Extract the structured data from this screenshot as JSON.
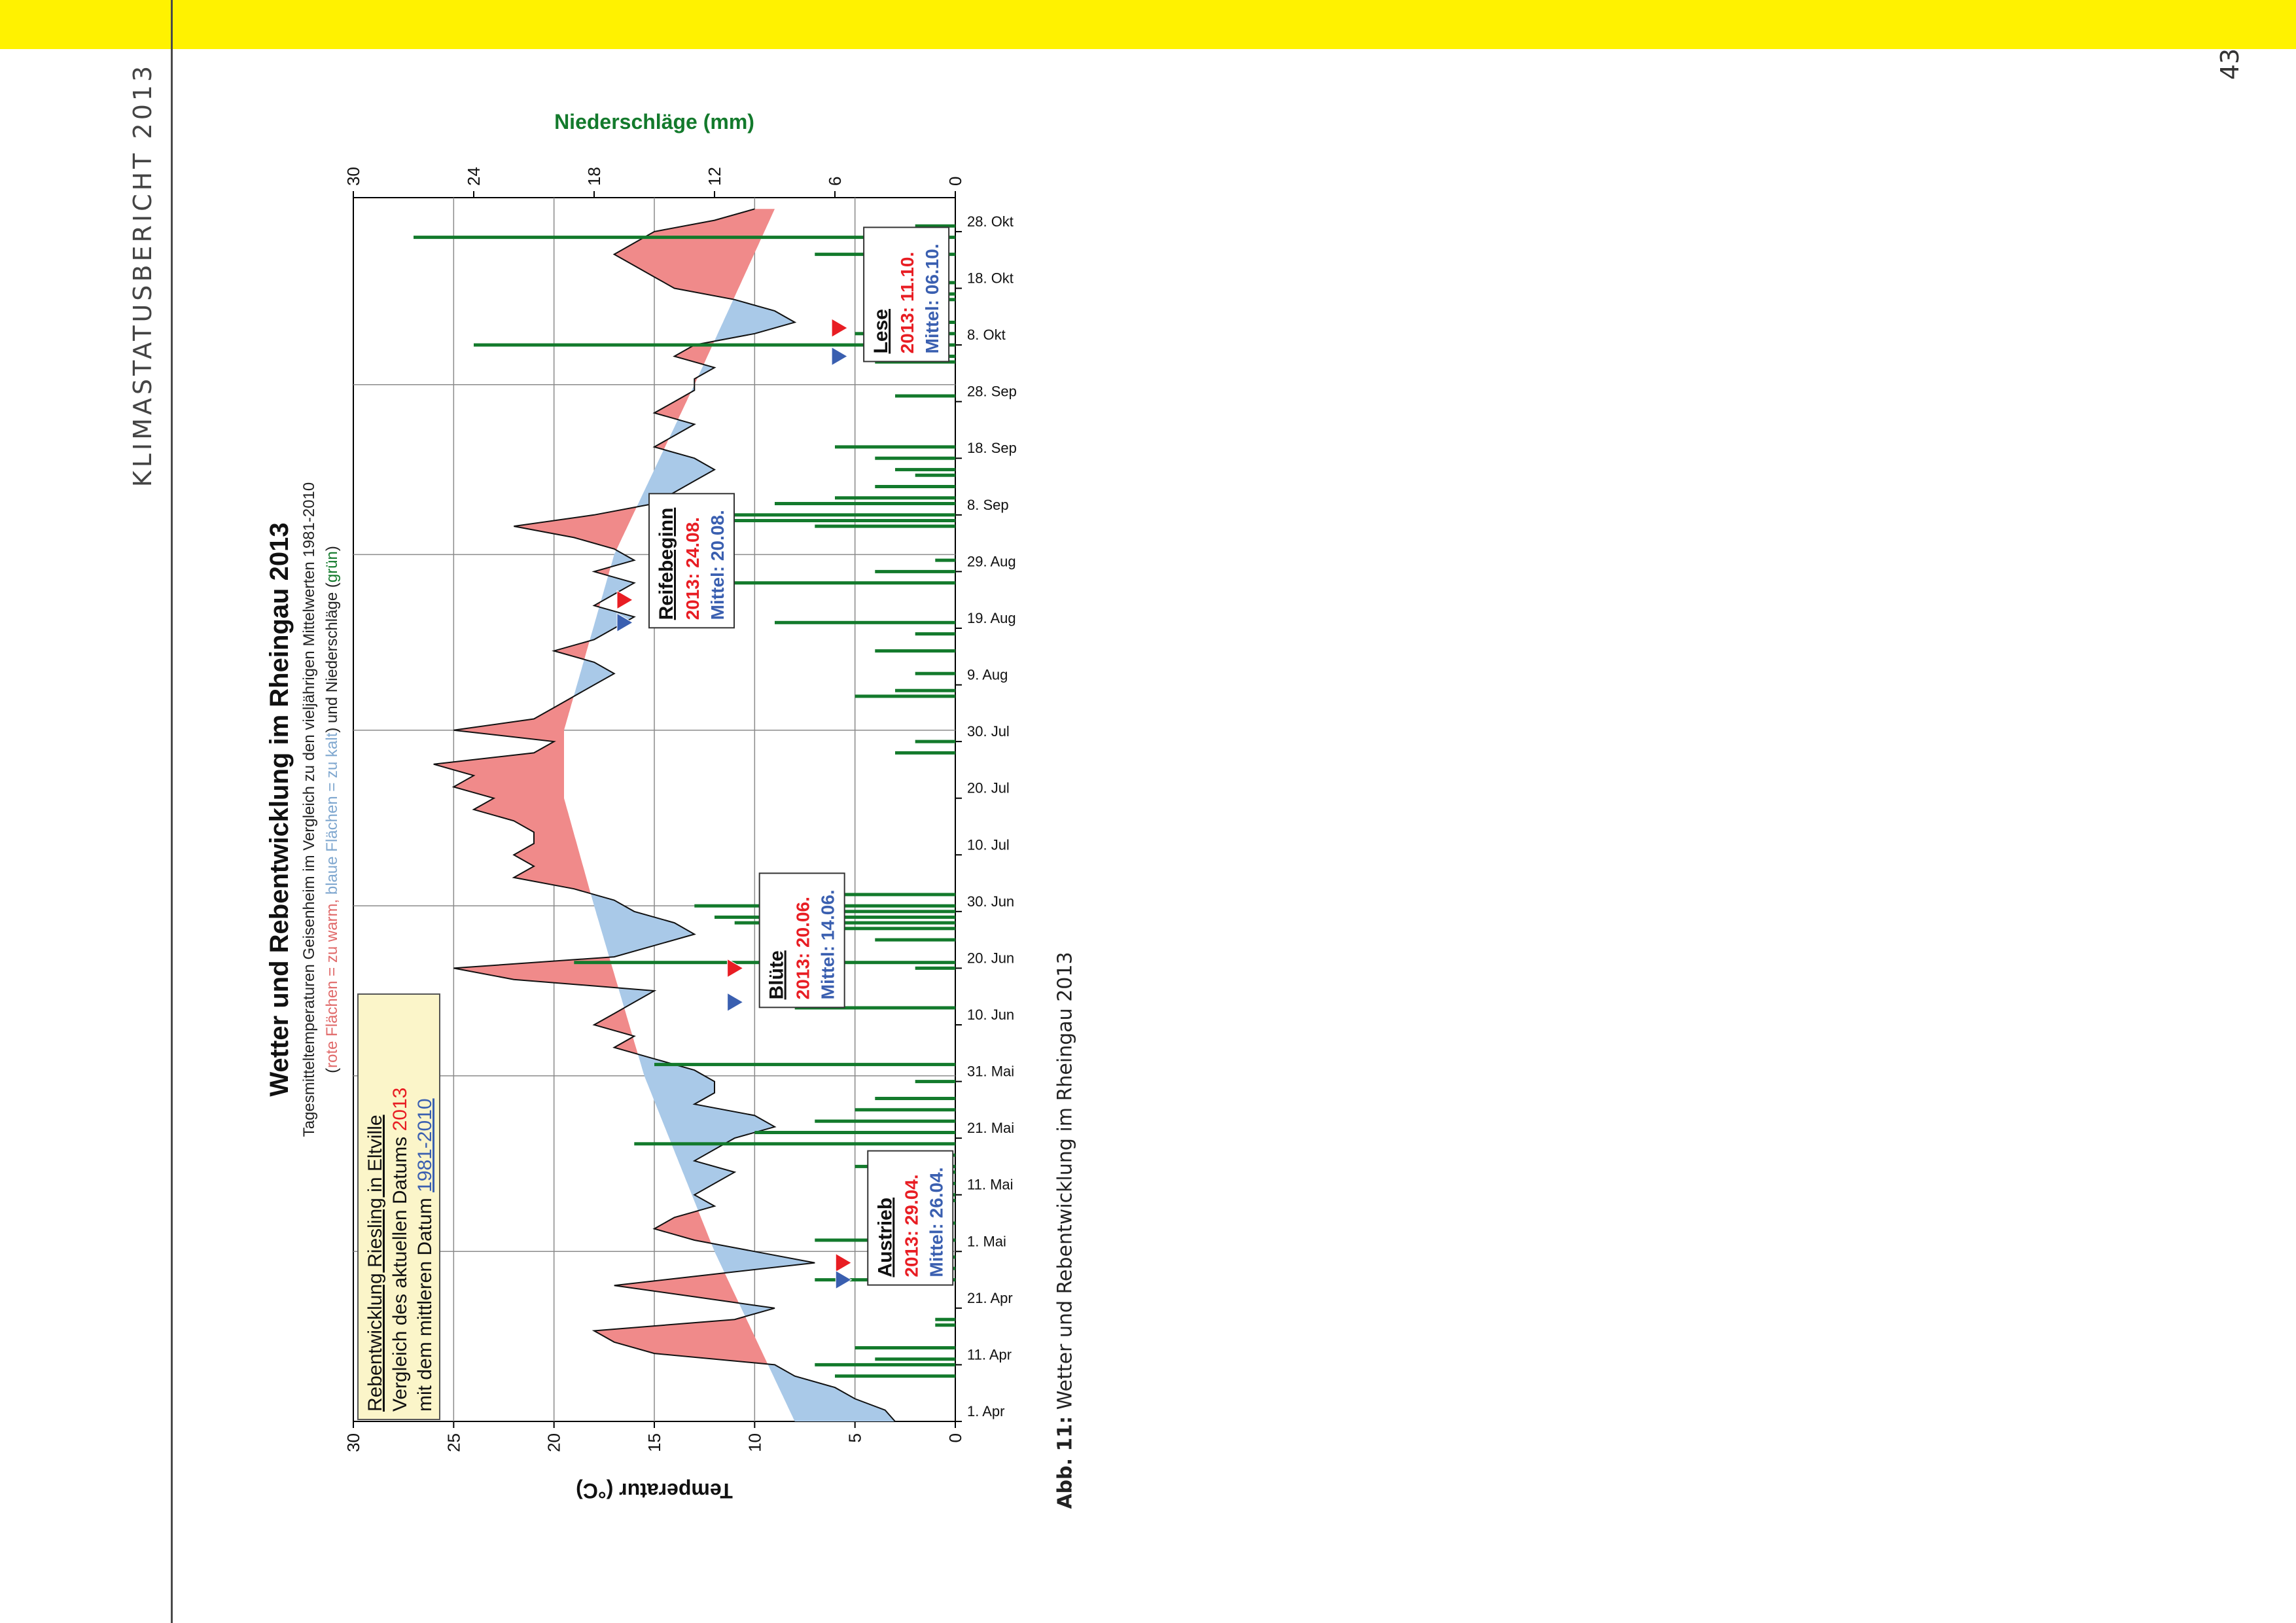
{
  "page": {
    "running_head": "KLIMASTATUSBERICHT 2013",
    "page_number": "43",
    "caption_label": "Abb. 11:",
    "caption_text": "Wetter und Rebentwicklung im Rheingau 2013",
    "colors": {
      "topbar": "#fff200",
      "warm": "#f08a8a",
      "cold": "#a9c9e8",
      "precip": "#137a2c",
      "mean2013": "#e81d23",
      "meanLong": "#3a5fb0"
    }
  },
  "chart_data": {
    "type": "area",
    "title": "Wetter und Rebentwicklung im Rheingau 2013",
    "subtitle": "Tagesmitteltemperaturen Geisenheim im Vergleich zu den vieljährigen Mittelwerten 1981-2010",
    "legend_note_prefix": "(",
    "legend_note_red": "rote Flächen = zu warm,",
    "legend_note_blue": "blaue Flächen = zu kalt",
    "legend_note_mid": ") und Niederschläge (",
    "legend_note_green": "grün",
    "legend_note_suffix": ")",
    "ylabel": "Temperatur (°C)",
    "ylabel2": "Niederschläge (mm)",
    "ylim": [
      0,
      30
    ],
    "yticks": [
      "30",
      "25",
      "20",
      "15",
      "10",
      "5",
      "0"
    ],
    "ylim2": [
      0,
      30
    ],
    "y2ticks": [
      "30",
      "24",
      "18",
      "12",
      "6",
      "0"
    ],
    "x_ticks": [
      "1. Apr",
      "11. Apr",
      "21. Apr",
      "1. Mai",
      "11. Mai",
      "21. Mai",
      "31. Mai",
      "10. Jun",
      "20. Jun",
      "30. Jun",
      "10. Jul",
      "20. Jul",
      "30. Jul",
      "9. Aug",
      "19. Aug",
      "29. Aug",
      "8. Sep",
      "18. Sep",
      "28. Sep",
      "8. Okt",
      "18. Okt",
      "28. Okt"
    ],
    "x_range": [
      "2013-04-01",
      "2013-11-03"
    ],
    "grid": true,
    "legend_box": {
      "line1": "Rebentwicklung Riesling in Eltville",
      "line2_prefix": "Vergleich des aktuellen Datums ",
      "line2_year": "2013",
      "line3_prefix": "mit dem mittleren Datum ",
      "line3_period": "1981-2010"
    },
    "phenology": [
      {
        "name": "Austrieb",
        "date_2013_label": "2013:  29.04.",
        "date_mean_label": "Mittel: 26.04.",
        "date_2013": "2013-04-29",
        "date_mean": "2013-04-26",
        "marker_temp": 5.6
      },
      {
        "name": "Blüte",
        "date_2013_label": "2013:  20.06.",
        "date_mean_label": "Mittel: 14.06.",
        "date_2013": "2013-06-20",
        "date_mean": "2013-06-14",
        "marker_temp": 11.0
      },
      {
        "name": "Reifebeginn",
        "date_2013_label": "2013:  24.08.",
        "date_mean_label": "Mittel: 20.08.",
        "date_2013": "2013-08-24",
        "date_mean": "2013-08-20",
        "marker_temp": 16.5
      },
      {
        "name": "Lese",
        "date_2013_label": "2013:  11.10.",
        "date_mean_label": "Mittel: 06.10.",
        "date_2013": "2013-10-11",
        "date_mean": "2013-10-06",
        "marker_temp": 5.8
      }
    ],
    "series": [
      {
        "name": "Tagesmitteltemperatur 2013",
        "points": [
          [
            "2013-04-01",
            3
          ],
          [
            "2013-04-03",
            3.5
          ],
          [
            "2013-04-05",
            5
          ],
          [
            "2013-04-07",
            6
          ],
          [
            "2013-04-09",
            8
          ],
          [
            "2013-04-11",
            9
          ],
          [
            "2013-04-13",
            15
          ],
          [
            "2013-04-15",
            17
          ],
          [
            "2013-04-17",
            18
          ],
          [
            "2013-04-19",
            11
          ],
          [
            "2013-04-21",
            9
          ],
          [
            "2013-04-23",
            13
          ],
          [
            "2013-04-25",
            17
          ],
          [
            "2013-04-27",
            12
          ],
          [
            "2013-04-29",
            7
          ],
          [
            "2013-05-01",
            10
          ],
          [
            "2013-05-03",
            13
          ],
          [
            "2013-05-05",
            15
          ],
          [
            "2013-05-07",
            14
          ],
          [
            "2013-05-09",
            12
          ],
          [
            "2013-05-11",
            13
          ],
          [
            "2013-05-13",
            12
          ],
          [
            "2013-05-15",
            11
          ],
          [
            "2013-05-17",
            13
          ],
          [
            "2013-05-19",
            12
          ],
          [
            "2013-05-21",
            11
          ],
          [
            "2013-05-23",
            9
          ],
          [
            "2013-05-25",
            10
          ],
          [
            "2013-05-27",
            13
          ],
          [
            "2013-05-29",
            12
          ],
          [
            "2013-05-31",
            12
          ],
          [
            "2013-06-02",
            13
          ],
          [
            "2013-06-04",
            15
          ],
          [
            "2013-06-06",
            17
          ],
          [
            "2013-06-08",
            16
          ],
          [
            "2013-06-10",
            18
          ],
          [
            "2013-06-12",
            17
          ],
          [
            "2013-06-14",
            16
          ],
          [
            "2013-06-16",
            15
          ],
          [
            "2013-06-18",
            22
          ],
          [
            "2013-06-20",
            25
          ],
          [
            "2013-06-22",
            17
          ],
          [
            "2013-06-24",
            15
          ],
          [
            "2013-06-26",
            13
          ],
          [
            "2013-06-28",
            14
          ],
          [
            "2013-06-30",
            16
          ],
          [
            "2013-07-02",
            17
          ],
          [
            "2013-07-04",
            19
          ],
          [
            "2013-07-06",
            22
          ],
          [
            "2013-07-08",
            21
          ],
          [
            "2013-07-10",
            22
          ],
          [
            "2013-07-12",
            21
          ],
          [
            "2013-07-14",
            21
          ],
          [
            "2013-07-16",
            22
          ],
          [
            "2013-07-18",
            24
          ],
          [
            "2013-07-20",
            23
          ],
          [
            "2013-07-22",
            25
          ],
          [
            "2013-07-24",
            24
          ],
          [
            "2013-07-26",
            26
          ],
          [
            "2013-07-28",
            21
          ],
          [
            "2013-07-30",
            20
          ],
          [
            "2013-08-01",
            25
          ],
          [
            "2013-08-03",
            21
          ],
          [
            "2013-08-05",
            20
          ],
          [
            "2013-08-07",
            19
          ],
          [
            "2013-08-09",
            18
          ],
          [
            "2013-08-11",
            17
          ],
          [
            "2013-08-13",
            18
          ],
          [
            "2013-08-15",
            20
          ],
          [
            "2013-08-17",
            18
          ],
          [
            "2013-08-19",
            17
          ],
          [
            "2013-08-21",
            16
          ],
          [
            "2013-08-23",
            18
          ],
          [
            "2013-08-25",
            17
          ],
          [
            "2013-08-27",
            16
          ],
          [
            "2013-08-29",
            18
          ],
          [
            "2013-08-31",
            16
          ],
          [
            "2013-09-02",
            17
          ],
          [
            "2013-09-04",
            19
          ],
          [
            "2013-09-06",
            22
          ],
          [
            "2013-09-08",
            18
          ],
          [
            "2013-09-10",
            15
          ],
          [
            "2013-09-12",
            14
          ],
          [
            "2013-09-14",
            13
          ],
          [
            "2013-09-16",
            12
          ],
          [
            "2013-09-18",
            13
          ],
          [
            "2013-09-20",
            15
          ],
          [
            "2013-09-22",
            14
          ],
          [
            "2013-09-24",
            13
          ],
          [
            "2013-09-26",
            15
          ],
          [
            "2013-09-28",
            14
          ],
          [
            "2013-09-30",
            13
          ],
          [
            "2013-10-02",
            13
          ],
          [
            "2013-10-04",
            12
          ],
          [
            "2013-10-06",
            14
          ],
          [
            "2013-10-08",
            13
          ],
          [
            "2013-10-10",
            10
          ],
          [
            "2013-10-12",
            8
          ],
          [
            "2013-10-14",
            9
          ],
          [
            "2013-10-16",
            11
          ],
          [
            "2013-10-18",
            14
          ],
          [
            "2013-10-20",
            15
          ],
          [
            "2013-10-22",
            16
          ],
          [
            "2013-10-24",
            17
          ],
          [
            "2013-10-26",
            16
          ],
          [
            "2013-10-28",
            15
          ],
          [
            "2013-10-30",
            12
          ],
          [
            "2013-11-01",
            10
          ]
        ]
      },
      {
        "name": "Mittelwert 1981-2010",
        "points": [
          [
            "2013-04-01",
            8
          ],
          [
            "2013-05-01",
            12
          ],
          [
            "2013-06-01",
            15.5
          ],
          [
            "2013-07-01",
            18
          ],
          [
            "2013-07-20",
            19.5
          ],
          [
            "2013-08-01",
            19.5
          ],
          [
            "2013-09-01",
            17
          ],
          [
            "2013-10-01",
            13
          ],
          [
            "2013-11-01",
            9
          ]
        ]
      },
      {
        "name": "Niederschläge",
        "unit": "mm",
        "bars": [
          [
            "2013-04-09",
            6
          ],
          [
            "2013-04-11",
            7
          ],
          [
            "2013-04-12",
            4
          ],
          [
            "2013-04-14",
            5
          ],
          [
            "2013-04-18",
            1
          ],
          [
            "2013-04-19",
            1
          ],
          [
            "2013-04-26",
            7
          ],
          [
            "2013-04-28",
            4
          ],
          [
            "2013-04-30",
            3
          ],
          [
            "2013-05-03",
            7
          ],
          [
            "2013-05-06",
            2
          ],
          [
            "2013-05-10",
            3
          ],
          [
            "2013-05-11",
            1
          ],
          [
            "2013-05-13",
            2
          ],
          [
            "2013-05-15",
            4
          ],
          [
            "2013-05-16",
            5
          ],
          [
            "2013-05-18",
            4
          ],
          [
            "2013-05-20",
            16
          ],
          [
            "2013-05-22",
            10
          ],
          [
            "2013-05-24",
            7
          ],
          [
            "2013-05-26",
            5
          ],
          [
            "2013-05-28",
            4
          ],
          [
            "2013-05-31",
            2
          ],
          [
            "2013-06-03",
            15
          ],
          [
            "2013-06-13",
            8
          ],
          [
            "2013-06-20",
            2
          ],
          [
            "2013-06-21",
            19
          ],
          [
            "2013-06-25",
            4
          ],
          [
            "2013-06-27",
            9
          ],
          [
            "2013-06-28",
            11
          ],
          [
            "2013-06-29",
            12
          ],
          [
            "2013-06-30",
            6
          ],
          [
            "2013-07-01",
            13
          ],
          [
            "2013-07-03",
            8
          ],
          [
            "2013-07-28",
            3
          ],
          [
            "2013-07-30",
            2
          ],
          [
            "2013-08-07",
            5
          ],
          [
            "2013-08-08",
            3
          ],
          [
            "2013-08-11",
            2
          ],
          [
            "2013-08-15",
            4
          ],
          [
            "2013-08-18",
            2
          ],
          [
            "2013-08-20",
            9
          ],
          [
            "2013-08-27",
            12
          ],
          [
            "2013-08-29",
            4
          ],
          [
            "2013-08-31",
            1
          ],
          [
            "2013-09-06",
            7
          ],
          [
            "2013-09-07",
            12
          ],
          [
            "2013-09-08",
            14
          ],
          [
            "2013-09-10",
            9
          ],
          [
            "2013-09-11",
            6
          ],
          [
            "2013-09-13",
            4
          ],
          [
            "2013-09-15",
            2
          ],
          [
            "2013-09-16",
            3
          ],
          [
            "2013-09-18",
            4
          ],
          [
            "2013-09-20",
            6
          ],
          [
            "2013-09-29",
            3
          ],
          [
            "2013-10-05",
            4
          ],
          [
            "2013-10-06",
            2
          ],
          [
            "2013-10-08",
            24
          ],
          [
            "2013-10-10",
            5
          ],
          [
            "2013-10-12",
            1
          ],
          [
            "2013-10-16",
            1
          ],
          [
            "2013-10-17",
            2
          ],
          [
            "2013-10-19",
            1
          ],
          [
            "2013-10-24",
            7
          ],
          [
            "2013-10-27",
            27
          ],
          [
            "2013-10-29",
            2
          ]
        ]
      }
    ]
  }
}
